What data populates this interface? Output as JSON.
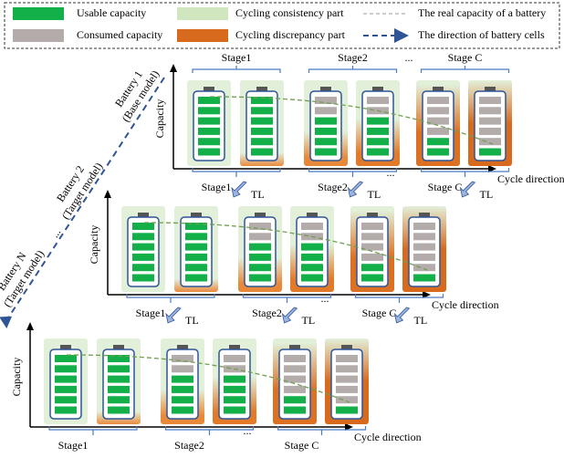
{
  "legend": [
    "Usable capacity",
    "Consumed capacity",
    "Cycling consistency part",
    "Cycling discrepancy part",
    "The real capacity of a battery",
    "The direction of battery cells"
  ],
  "batteries": [
    {
      "name": "Battery 1",
      "model": "(Base model)"
    },
    {
      "name": "Battery 2",
      "model": "(Target model)"
    },
    {
      "name": "Battery N",
      "model": "(Target model)"
    }
  ],
  "ellipsis": "...",
  "top_stages": [
    "Stage1",
    "Stage2",
    "...",
    "Stage C"
  ],
  "panels": [
    {
      "y_label": "Capacity",
      "x_label": "Cycle direction",
      "stages": [
        "Stage1",
        "Stage2",
        "...",
        "Stage C"
      ],
      "tl": [
        "TL",
        "TL",
        "TL"
      ]
    },
    {
      "y_label": "Capacity",
      "x_label": "Cycle direction",
      "stages": [
        "Stage1",
        "Stage2",
        "...",
        "Stage C"
      ],
      "tl": [
        "TL",
        "TL",
        "TL"
      ]
    },
    {
      "y_label": "Capacity",
      "x_label": "Cycle direction",
      "stages": [
        "Stage1",
        "Stage2",
        "...",
        "Stage C"
      ]
    }
  ]
}
